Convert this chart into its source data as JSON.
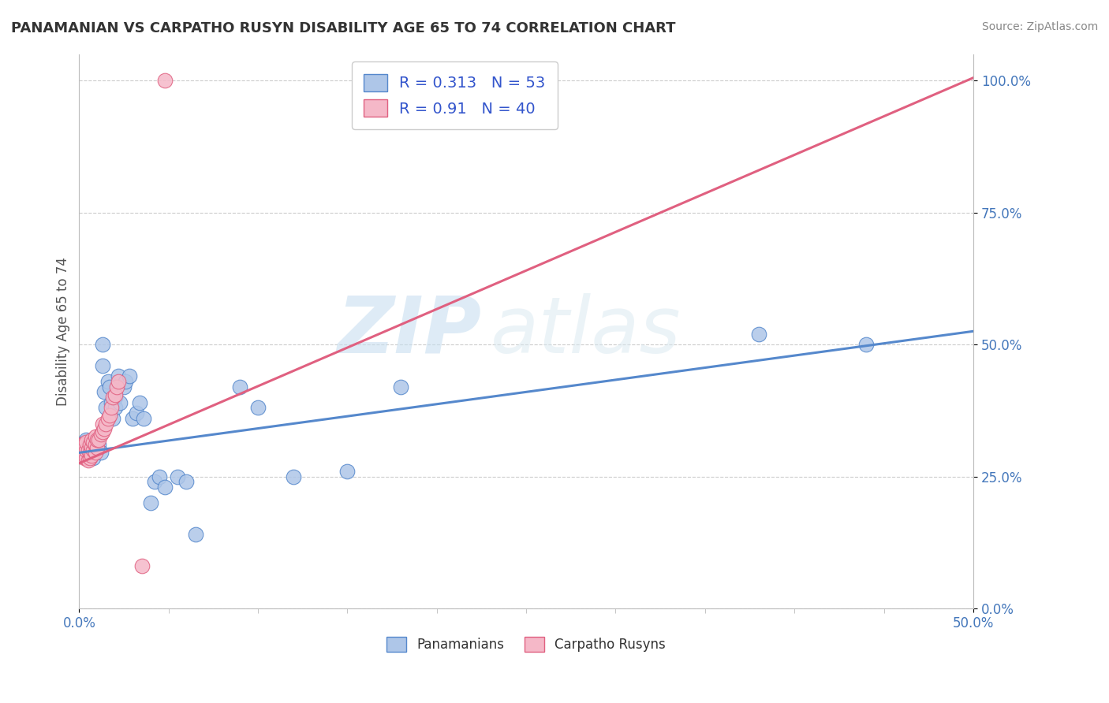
{
  "title": "PANAMANIAN VS CARPATHO RUSYN DISABILITY AGE 65 TO 74 CORRELATION CHART",
  "source": "Source: ZipAtlas.com",
  "xlim": [
    0.0,
    0.5
  ],
  "ylim": [
    0.0,
    1.05
  ],
  "ylabel": "Disability Age 65 to 74",
  "panamanian_R": 0.313,
  "panamanian_N": 53,
  "carpatho_R": 0.91,
  "carpatho_N": 40,
  "pan_color": "#aec6e8",
  "carp_color": "#f5b8c8",
  "pan_line_color": "#5588cc",
  "carp_line_color": "#e06080",
  "legend_text_color": "#3355cc",
  "pan_scatter_x": [
    0.001,
    0.002,
    0.003,
    0.003,
    0.004,
    0.004,
    0.005,
    0.005,
    0.006,
    0.006,
    0.007,
    0.007,
    0.008,
    0.008,
    0.009,
    0.009,
    0.01,
    0.01,
    0.011,
    0.012,
    0.013,
    0.013,
    0.014,
    0.015,
    0.016,
    0.017,
    0.018,
    0.019,
    0.02,
    0.02,
    0.022,
    0.023,
    0.025,
    0.026,
    0.028,
    0.03,
    0.032,
    0.034,
    0.036,
    0.04,
    0.042,
    0.045,
    0.048,
    0.055,
    0.06,
    0.065,
    0.09,
    0.1,
    0.12,
    0.15,
    0.18,
    0.38,
    0.44
  ],
  "pan_scatter_y": [
    0.295,
    0.31,
    0.295,
    0.315,
    0.3,
    0.32,
    0.285,
    0.3,
    0.29,
    0.295,
    0.3,
    0.31,
    0.285,
    0.295,
    0.3,
    0.315,
    0.3,
    0.32,
    0.31,
    0.295,
    0.46,
    0.5,
    0.41,
    0.38,
    0.43,
    0.42,
    0.39,
    0.36,
    0.38,
    0.4,
    0.44,
    0.39,
    0.42,
    0.43,
    0.44,
    0.36,
    0.37,
    0.39,
    0.36,
    0.2,
    0.24,
    0.25,
    0.23,
    0.25,
    0.24,
    0.14,
    0.42,
    0.38,
    0.25,
    0.26,
    0.42,
    0.52,
    0.5
  ],
  "carp_scatter_x": [
    0.001,
    0.001,
    0.002,
    0.002,
    0.003,
    0.003,
    0.003,
    0.004,
    0.004,
    0.004,
    0.005,
    0.005,
    0.006,
    0.006,
    0.006,
    0.007,
    0.007,
    0.007,
    0.008,
    0.008,
    0.009,
    0.009,
    0.009,
    0.01,
    0.01,
    0.011,
    0.012,
    0.013,
    0.013,
    0.014,
    0.015,
    0.016,
    0.017,
    0.018,
    0.019,
    0.02,
    0.021,
    0.022,
    0.035,
    0.048
  ],
  "carp_scatter_y": [
    0.295,
    0.31,
    0.295,
    0.31,
    0.285,
    0.295,
    0.31,
    0.285,
    0.3,
    0.315,
    0.28,
    0.3,
    0.285,
    0.295,
    0.31,
    0.29,
    0.305,
    0.32,
    0.3,
    0.315,
    0.295,
    0.31,
    0.325,
    0.305,
    0.32,
    0.32,
    0.33,
    0.335,
    0.35,
    0.34,
    0.35,
    0.36,
    0.365,
    0.38,
    0.4,
    0.405,
    0.42,
    0.43,
    0.08,
    1.0
  ],
  "watermark_zip": "ZIP",
  "watermark_atlas": "atlas",
  "background_color": "#ffffff",
  "grid_color": "#cccccc"
}
